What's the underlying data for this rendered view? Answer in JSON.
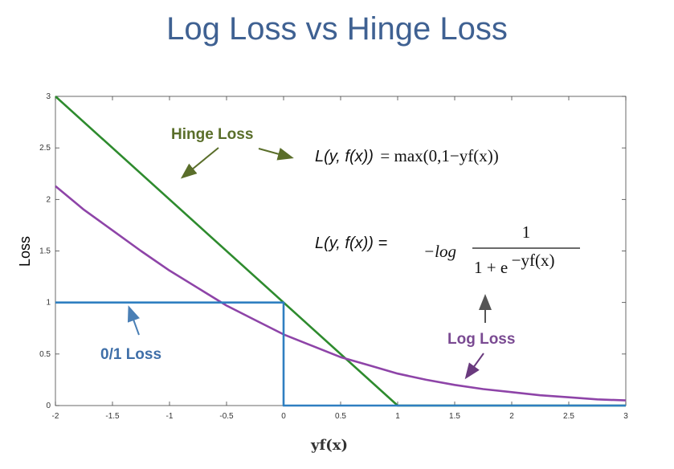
{
  "title": "Log Loss vs Hinge Loss",
  "chart_data": {
    "type": "line",
    "xlabel": "yf(x)",
    "ylabel": "Loss",
    "xlim": [
      -2,
      3
    ],
    "ylim": [
      0,
      3
    ],
    "xticks": [
      -2,
      -1.5,
      -1,
      -0.5,
      0,
      0.5,
      1,
      1.5,
      2,
      2.5,
      3
    ],
    "xtick_labels": [
      "-2",
      "-1.5",
      "-1",
      "-0.5",
      "0",
      "0.5",
      "1",
      "1.5",
      "2",
      "2.5",
      "3"
    ],
    "yticks": [
      0,
      0.5,
      1,
      1.5,
      2,
      2.5,
      3
    ],
    "ytick_labels": [
      "0",
      "0.5",
      "1",
      "1.5",
      "2",
      "2.5",
      "3"
    ],
    "grid": false,
    "series": [
      {
        "name": "Hinge Loss",
        "color": "#2e8b2e",
        "x": [
          -2,
          1,
          3
        ],
        "y": [
          3,
          0,
          0
        ]
      },
      {
        "name": "Log Loss",
        "color": "#8e44a8",
        "x": [
          -2,
          -1.75,
          -1.5,
          -1.25,
          -1,
          -0.75,
          -0.5,
          -0.25,
          0,
          0.25,
          0.5,
          0.75,
          1,
          1.25,
          1.5,
          1.75,
          2,
          2.25,
          2.5,
          2.75,
          3
        ],
        "y": [
          2.13,
          1.9,
          1.7,
          1.5,
          1.31,
          1.14,
          0.97,
          0.83,
          0.69,
          0.58,
          0.47,
          0.39,
          0.31,
          0.25,
          0.2,
          0.16,
          0.13,
          0.1,
          0.08,
          0.06,
          0.05
        ]
      },
      {
        "name": "0/1 Loss",
        "color": "#2f7fc1",
        "x": [
          -2,
          0,
          0,
          3
        ],
        "y": [
          1,
          1,
          0,
          0
        ]
      }
    ],
    "annotations": {
      "hinge_label": "Hinge Loss",
      "log_label": "Log Loss",
      "zero_one_label": "0/1 Loss",
      "hinge_formula_lhs": "L(y, f(x))",
      "hinge_formula_rhs": "= max(0,1−yf(x))",
      "log_formula_lhs": "L(y, f(x)) =",
      "log_formula_prefix": "−log",
      "log_formula_num": "1",
      "log_formula_den": "1 + e",
      "log_formula_exp": "−yf(x)"
    }
  }
}
